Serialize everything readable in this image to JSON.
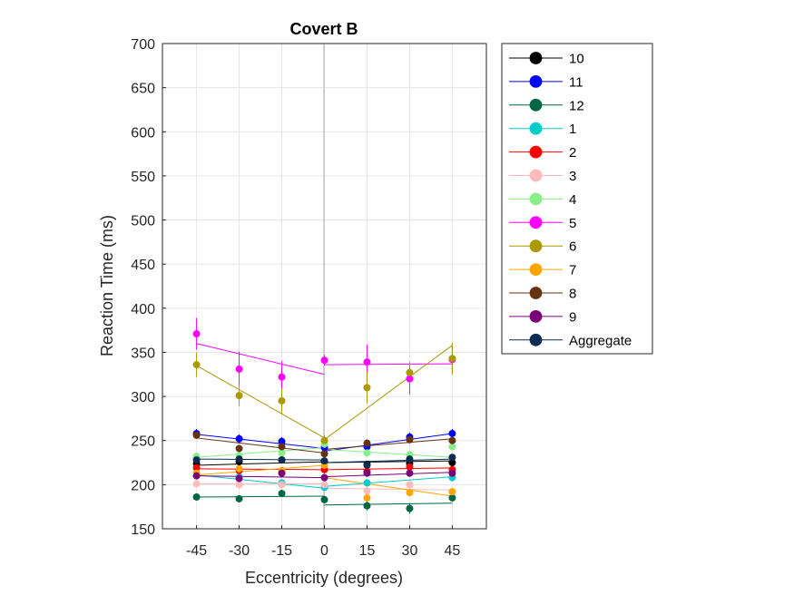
{
  "chart_data": {
    "type": "scatter",
    "title": "Covert B",
    "xlabel": "Eccentricity (degrees)",
    "ylabel": "Reaction Time (ms)",
    "x": [
      -45,
      -30,
      -15,
      0,
      15,
      30,
      45
    ],
    "x_ticks": [
      "-45",
      "-30",
      "-15",
      "0",
      "15",
      "30",
      "45"
    ],
    "xlim": [
      -57,
      57
    ],
    "ylim": [
      150,
      700
    ],
    "y_ticks": [
      "150",
      "200",
      "250",
      "300",
      "350",
      "400",
      "450",
      "500",
      "550",
      "600",
      "650",
      "700"
    ],
    "grid": true,
    "legend_position": "outside-right",
    "series": [
      {
        "name": "10",
        "color": "#000000",
        "values": [
          224,
          226,
          228,
          226,
          223,
          224,
          225
        ],
        "errors": [
          4,
          4,
          4,
          4,
          4,
          4,
          4
        ],
        "fit_left": [
          222,
          226
        ],
        "fit_right": [
          225,
          227
        ]
      },
      {
        "name": "11",
        "color": "#0000ff",
        "values": [
          258,
          252,
          249,
          242,
          243,
          254,
          258
        ],
        "errors": [
          5,
          5,
          5,
          5,
          5,
          5,
          5
        ],
        "fit_left": [
          257,
          241
        ],
        "fit_right": [
          238,
          258
        ]
      },
      {
        "name": "12",
        "color": "#006644",
        "values": [
          186,
          184,
          190,
          183,
          176,
          173,
          185
        ],
        "errors": [
          4,
          4,
          4,
          4,
          5,
          6,
          4
        ],
        "fit_left": [
          186,
          187
        ],
        "fit_right": [
          177,
          179
        ]
      },
      {
        "name": "1",
        "color": "#00cccc",
        "values": [
          231,
          209,
          202,
          197,
          202,
          200,
          208
        ],
        "errors": [
          4,
          4,
          4,
          4,
          4,
          4,
          4
        ],
        "fit_left": [
          211,
          196
        ],
        "fit_right": [
          198,
          209
        ]
      },
      {
        "name": "2",
        "color": "#ff0000",
        "values": [
          219,
          216,
          215,
          217,
          215,
          220,
          217
        ],
        "errors": [
          4,
          4,
          4,
          4,
          4,
          4,
          4
        ],
        "fit_left": [
          218,
          217
        ],
        "fit_right": [
          217,
          219
        ]
      },
      {
        "name": "3",
        "color": "#ffbbbb",
        "values": [
          201,
          200,
          200,
          200,
          193,
          200,
          192
        ],
        "errors": [
          4,
          4,
          4,
          4,
          4,
          4,
          4
        ],
        "fit_left": [
          201,
          201
        ],
        "fit_right": [
          196,
          194
        ]
      },
      {
        "name": "4",
        "color": "#88ee88",
        "values": [
          232,
          233,
          236,
          246,
          236,
          234,
          243
        ],
        "errors": [
          4,
          4,
          4,
          4,
          4,
          4,
          4
        ],
        "fit_left": [
          231,
          242
        ],
        "fit_right": [
          240,
          231
        ]
      },
      {
        "name": "5",
        "color": "#ff00ff",
        "values": [
          371,
          331,
          322,
          341,
          339,
          320,
          342
        ],
        "errors": [
          18,
          20,
          18,
          6,
          20,
          18,
          16
        ],
        "fit_left": [
          360,
          325
        ],
        "fit_right": [
          336,
          337
        ]
      },
      {
        "name": "6",
        "color": "#aa9900",
        "values": [
          336,
          301,
          295,
          250,
          310,
          327,
          343
        ],
        "errors": [
          14,
          12,
          14,
          6,
          18,
          12,
          18
        ],
        "fit_left": [
          335,
          253
        ],
        "fit_right": [
          251,
          358
        ]
      },
      {
        "name": "7",
        "color": "#ffa500",
        "values": [
          213,
          218,
          216,
          222,
          185,
          191,
          192
        ],
        "errors": [
          4,
          4,
          4,
          4,
          4,
          4,
          4
        ],
        "fit_left": [
          211,
          222
        ],
        "fit_right": [
          208,
          187
        ]
      },
      {
        "name": "8",
        "color": "#663311",
        "values": [
          256,
          241,
          243,
          235,
          247,
          251,
          250
        ],
        "errors": [
          4,
          4,
          4,
          4,
          4,
          4,
          4
        ],
        "fit_left": [
          253,
          236
        ],
        "fit_right": [
          240,
          252
        ]
      },
      {
        "name": "9",
        "color": "#7a007a",
        "values": [
          210,
          207,
          213,
          208,
          213,
          213,
          213
        ],
        "errors": [
          4,
          4,
          4,
          4,
          4,
          4,
          4
        ],
        "fit_left": [
          210,
          208
        ],
        "fit_right": [
          209,
          214
        ]
      },
      {
        "name": "Aggregate",
        "color": "#0a2c52",
        "values": [
          228,
          229,
          228,
          227,
          222,
          229,
          231
        ],
        "errors": [
          3,
          3,
          3,
          3,
          3,
          3,
          3
        ],
        "fit_left": [
          229,
          228
        ],
        "fit_right": [
          225,
          229
        ]
      }
    ]
  }
}
